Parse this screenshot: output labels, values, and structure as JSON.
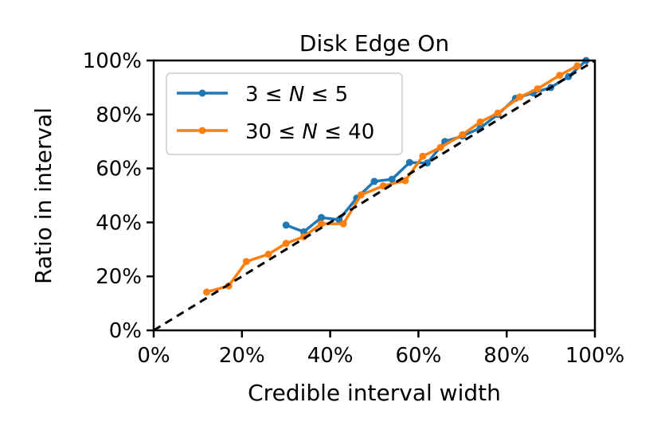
{
  "chart_data": {
    "type": "line",
    "title": "Disk Edge On",
    "xlabel": "Credible interval width",
    "ylabel": "Ratio in interval",
    "xlim": [
      0,
      1
    ],
    "ylim": [
      0,
      1
    ],
    "x_ticks": [
      "0%",
      "20%",
      "40%",
      "60%",
      "80%",
      "100%"
    ],
    "y_ticks": [
      "0%",
      "20%",
      "40%",
      "60%",
      "80%",
      "100%"
    ],
    "grid": false,
    "legend_position": "top-left",
    "reference_line": {
      "style": "dashed",
      "color": "#000000",
      "from": [
        0,
        0
      ],
      "to": [
        1,
        1
      ]
    },
    "series": [
      {
        "legend": [
          "3 ≤ ",
          "N",
          " ≤ 5"
        ],
        "color": "#1f77b4",
        "x": [
          0.3,
          0.34,
          0.38,
          0.42,
          0.46,
          0.5,
          0.54,
          0.58,
          0.62,
          0.66,
          0.7,
          0.74,
          0.78,
          0.82,
          0.86,
          0.9,
          0.94,
          0.98
        ],
        "y": [
          0.39,
          0.365,
          0.418,
          0.41,
          0.49,
          0.552,
          0.56,
          0.622,
          0.62,
          0.7,
          0.72,
          0.75,
          0.8,
          0.86,
          0.88,
          0.9,
          0.94,
          1.0
        ]
      },
      {
        "legend": [
          "30 ≤ ",
          "N",
          " ≤ 40"
        ],
        "color": "#ff7f0e",
        "x": [
          0.12,
          0.17,
          0.21,
          0.26,
          0.3,
          0.34,
          0.38,
          0.43,
          0.47,
          0.52,
          0.57,
          0.61,
          0.65,
          0.7,
          0.74,
          0.78,
          0.83,
          0.87,
          0.92,
          0.96
        ],
        "y": [
          0.142,
          0.165,
          0.255,
          0.282,
          0.322,
          0.347,
          0.395,
          0.395,
          0.502,
          0.535,
          0.555,
          0.645,
          0.678,
          0.725,
          0.772,
          0.805,
          0.865,
          0.895,
          0.945,
          0.98
        ]
      }
    ]
  }
}
